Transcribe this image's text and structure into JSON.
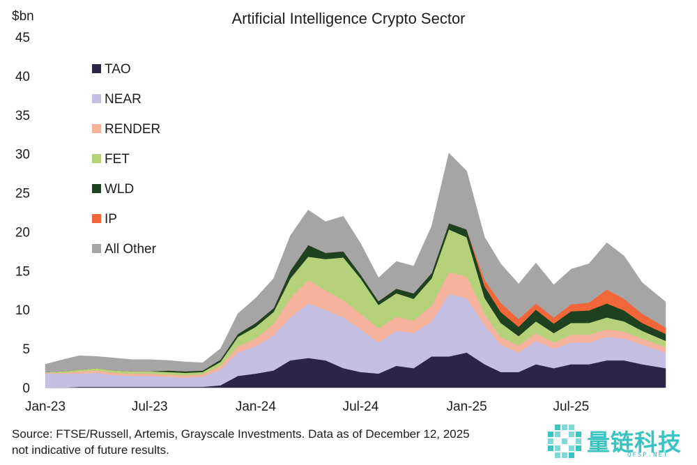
{
  "chart_data": {
    "type": "area",
    "stacked": true,
    "title": "Artificial Intelligence Crypto Sector",
    "ylabel": "$bn",
    "xlabel": "",
    "ylim": [
      0,
      45
    ],
    "yticks": [
      "0",
      "5",
      "10",
      "15",
      "20",
      "25",
      "30",
      "35",
      "40",
      "45"
    ],
    "xticks": [
      {
        "label": "Jan-23",
        "date": "2023-01-01"
      },
      {
        "label": "Jul-23",
        "date": "2023-07-01"
      },
      {
        "label": "Jan-24",
        "date": "2024-01-01"
      },
      {
        "label": "Jul-24",
        "date": "2024-07-01"
      },
      {
        "label": "Jan-25",
        "date": "2025-01-01"
      },
      {
        "label": "Jul-25",
        "date": "2025-07-01"
      }
    ],
    "grid": false,
    "legend_position": "top-left",
    "x": [
      "2023-01-01",
      "2023-02-01",
      "2023-03-01",
      "2023-04-01",
      "2023-05-01",
      "2023-06-01",
      "2023-07-01",
      "2023-08-01",
      "2023-09-01",
      "2023-10-01",
      "2023-11-01",
      "2023-12-01",
      "2024-01-01",
      "2024-02-01",
      "2024-03-01",
      "2024-04-01",
      "2024-05-01",
      "2024-06-01",
      "2024-07-01",
      "2024-08-01",
      "2024-09-01",
      "2024-10-01",
      "2024-11-01",
      "2024-12-01",
      "2025-01-01",
      "2025-02-01",
      "2025-03-01",
      "2025-04-01",
      "2025-05-01",
      "2025-06-01",
      "2025-07-01",
      "2025-08-01",
      "2025-09-01",
      "2025-10-01",
      "2025-11-01",
      "2025-12-12"
    ],
    "series": [
      {
        "name": "TAO",
        "color": "#2e2448",
        "values": [
          0,
          0,
          0.1,
          0.1,
          0.1,
          0.1,
          0.1,
          0.1,
          0.1,
          0.1,
          0.3,
          1.5,
          1.8,
          2.2,
          3.5,
          3.8,
          3.5,
          2.5,
          2.0,
          1.8,
          2.8,
          2.5,
          4.0,
          4.0,
          4.5,
          3.0,
          2.0,
          2.0,
          3.0,
          2.5,
          3.0,
          3.0,
          3.5,
          3.5,
          3.0,
          2.5
        ]
      },
      {
        "name": "NEAR",
        "color": "#c4bfe3",
        "values": [
          1.8,
          1.8,
          1.7,
          1.8,
          1.5,
          1.4,
          1.4,
          1.3,
          1.2,
          1.3,
          2.0,
          3.0,
          3.5,
          4.5,
          5.5,
          7.0,
          6.5,
          6.5,
          5.5,
          4.0,
          4.5,
          4.5,
          4.5,
          8.0,
          7.0,
          5.0,
          3.5,
          2.5,
          3.0,
          2.5,
          2.8,
          2.8,
          3.0,
          2.8,
          2.5,
          2.0
        ]
      },
      {
        "name": "RENDER",
        "color": "#f5b29d",
        "values": [
          0.1,
          0.1,
          0.3,
          0.3,
          0.3,
          0.3,
          0.3,
          0.3,
          0.3,
          0.3,
          0.5,
          0.8,
          1.0,
          1.5,
          2.5,
          3.0,
          2.5,
          2.2,
          2.0,
          1.8,
          1.8,
          1.6,
          2.0,
          2.8,
          2.8,
          1.5,
          1.0,
          0.9,
          1.0,
          0.8,
          1.0,
          1.0,
          1.0,
          0.9,
          0.8,
          0.7
        ]
      },
      {
        "name": "FET",
        "color": "#b5d27a",
        "values": [
          0.1,
          0.2,
          0.2,
          0.3,
          0.3,
          0.3,
          0.3,
          0.3,
          0.3,
          0.3,
          0.5,
          1.2,
          1.5,
          1.5,
          2.5,
          3.0,
          4.0,
          5.5,
          4.5,
          3.0,
          3.0,
          2.8,
          3.5,
          5.5,
          5.0,
          2.0,
          1.8,
          1.2,
          1.5,
          1.2,
          1.5,
          1.5,
          1.5,
          1.3,
          1.0,
          0.8
        ]
      },
      {
        "name": "WLD",
        "color": "#1e4220",
        "values": [
          0,
          0,
          0,
          0,
          0,
          0,
          0,
          0.2,
          0.2,
          0.2,
          0.3,
          0.4,
          0.5,
          0.5,
          1.0,
          1.5,
          0.8,
          0.8,
          0.5,
          0.5,
          0.6,
          0.7,
          0.7,
          0.8,
          1.0,
          1.5,
          1.4,
          1.2,
          1.5,
          1.2,
          1.5,
          1.6,
          1.8,
          1.4,
          1.0,
          0.9
        ]
      },
      {
        "name": "IP",
        "color": "#f26739",
        "values": [
          0,
          0,
          0,
          0,
          0,
          0,
          0,
          0,
          0,
          0,
          0,
          0,
          0,
          0,
          0,
          0,
          0,
          0,
          0,
          0,
          0,
          0,
          0,
          0,
          0,
          0.8,
          1.2,
          1.0,
          0.8,
          0.8,
          0.9,
          1.0,
          1.8,
          1.5,
          1.2,
          0.8
        ]
      },
      {
        "name": "All Other",
        "color": "#a5a5a5",
        "values": [
          1.0,
          1.5,
          1.8,
          1.5,
          1.6,
          1.5,
          1.5,
          1.3,
          1.2,
          1.0,
          1.4,
          2.6,
          3.2,
          3.8,
          4.5,
          4.5,
          4.0,
          4.5,
          4.0,
          3.0,
          3.5,
          3.5,
          6.0,
          9.0,
          7.5,
          5.5,
          5.0,
          4.5,
          5.2,
          4.2,
          4.5,
          5.0,
          6.0,
          5.5,
          4.0,
          3.3
        ]
      }
    ]
  },
  "footer": {
    "source": "Source: FTSE/Russell, Artemis, Grayscale Investments. Data as of December 12, 2025",
    "disclaimer": "not indicative of future results."
  },
  "watermark": {
    "text": "量链科技",
    "sub": "QFSP.NET",
    "logo_color": "#39c3c3"
  }
}
